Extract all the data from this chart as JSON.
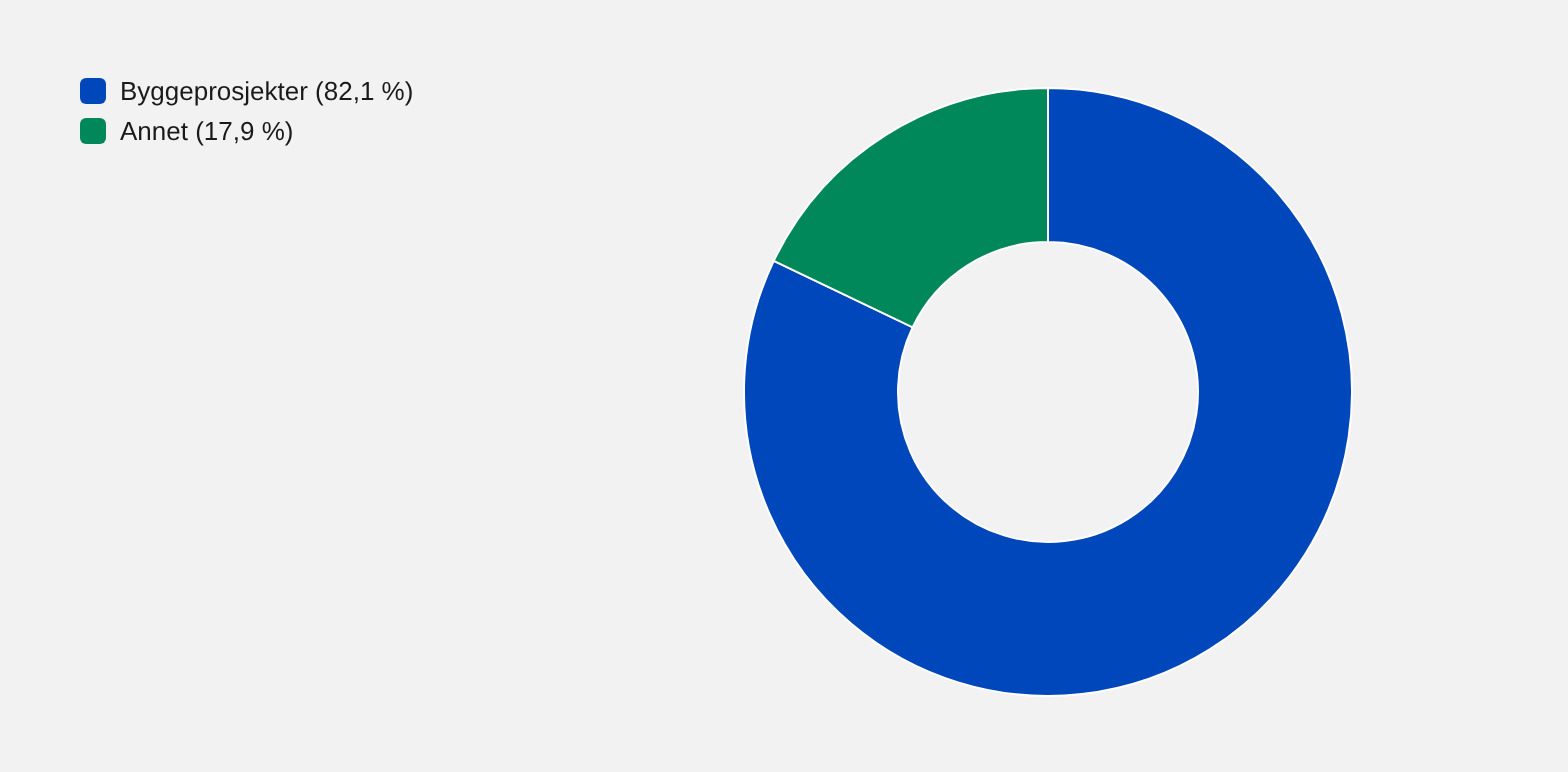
{
  "chart_data": {
    "type": "donut",
    "categories": [
      "Byggeprosjekter (82,1 %)",
      "Annet (17,9 %)"
    ],
    "values": [
      82.1,
      17.9
    ],
    "colors": [
      "#0047bb",
      "#00875a"
    ],
    "legend": "top left"
  }
}
